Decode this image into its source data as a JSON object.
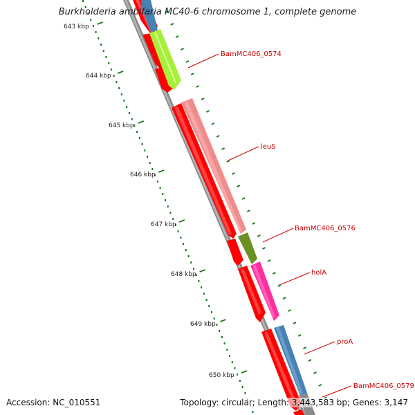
{
  "title": "Burkholderia ambifaria MC40-6 chromosome 1, complete genome",
  "footer": {
    "accession": "Accession: NC_010551",
    "summary": "Topology: circular; Length: 3,443,583 bp; Genes: 3,147"
  },
  "ruler": {
    "ticks": [
      "643 kbp",
      "644 kbp",
      "645 kbp",
      "646 kbp",
      "647 kbp",
      "648 kbp",
      "649 kbp",
      "650 kbp"
    ]
  },
  "gene_labels": [
    {
      "text": "BamMC406_0574"
    },
    {
      "text": "leuS"
    },
    {
      "text": "BamMC406_0576"
    },
    {
      "text": "holA"
    },
    {
      "text": "proA"
    },
    {
      "text": "BamMC406_0579"
    }
  ],
  "colors": {
    "forward_strand": "#ff0000",
    "reverse_gene_0574": "#a6f03a",
    "reverse_gene_leuS": "#f08c8c",
    "reverse_gene_0576": "#6b8f23",
    "reverse_gene_holA": "#ff2fa0",
    "reverse_gene_proA": "#4682b4",
    "reverse_gene_top": "#4682b4",
    "backbone": "#8a8a8a",
    "ruler": "#1a7a1a",
    "label": "#cc0000"
  }
}
